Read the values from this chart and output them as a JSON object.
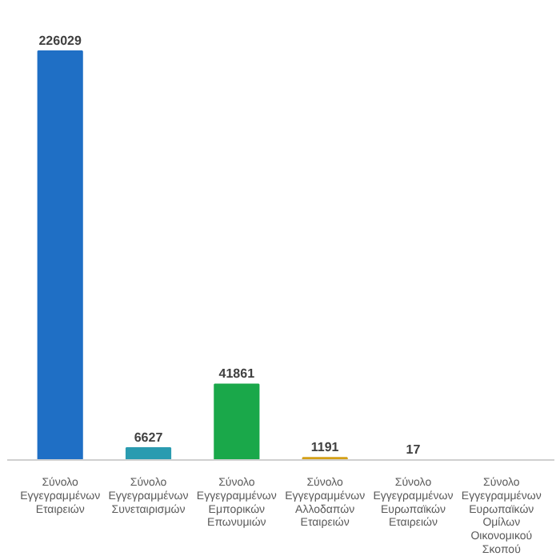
{
  "chart_data": {
    "type": "bar",
    "categories": [
      "Σύνολο Εγγεγραμμένων Εταιρειών",
      "Σύνολο Εγγεγραμμένων Συνεταιρισμών",
      "Σύνολο Εγγεγραμμένων Εμπορικών Επωνυμιών",
      "Σύνολο Εγγεγραμμένων Αλλοδαπών Εταιρειών",
      "Σύνολο Εγγεγραμμένων Ευρωπαϊκών Εταιρειών",
      "Σύνολο Εγγεγραμμένων Ευρωπαϊκών Ομίλων Οικονομικού Σκοπού"
    ],
    "values": [
      226029,
      6627,
      41861,
      1191,
      17,
      null
    ],
    "value_labels": [
      "226029",
      "6627",
      "41861",
      "1191",
      "17",
      null
    ],
    "colors": [
      "#1f6fc5",
      "#2a9bb0",
      "#1aa84a",
      "#d4a017",
      "#4b3a78",
      "#4b3a78"
    ]
  }
}
